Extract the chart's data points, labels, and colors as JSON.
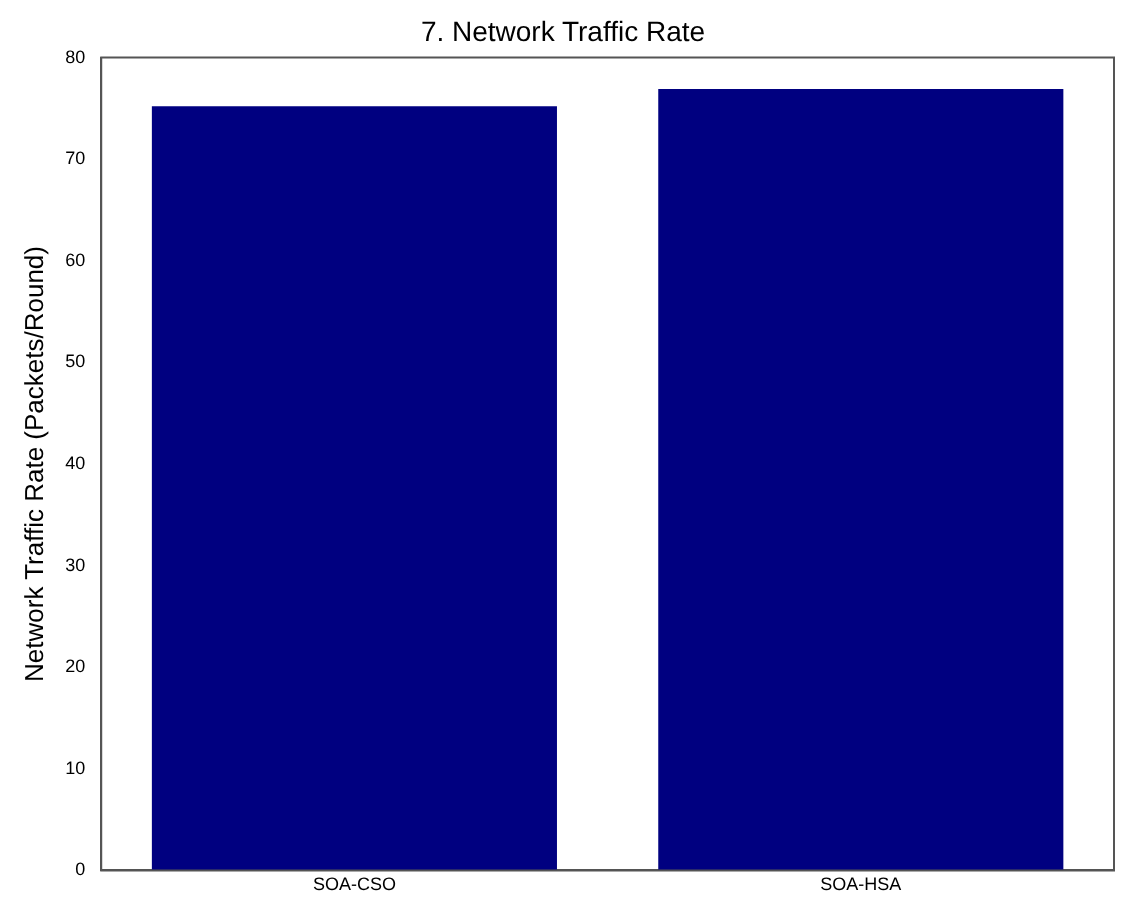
{
  "chart_data": {
    "type": "bar",
    "title": "7. Network Traffic Rate",
    "ylabel": "Network Traffic Rate (Packets/Round)",
    "categories": [
      "SOA-CSO",
      "SOA-HSA"
    ],
    "values": [
      75.2,
      76.9
    ],
    "color": "#000080",
    "ylim": [
      0,
      80
    ],
    "yticks": [
      0,
      10,
      20,
      30,
      40,
      50,
      60,
      70,
      80
    ],
    "grid": false,
    "legend": false
  }
}
